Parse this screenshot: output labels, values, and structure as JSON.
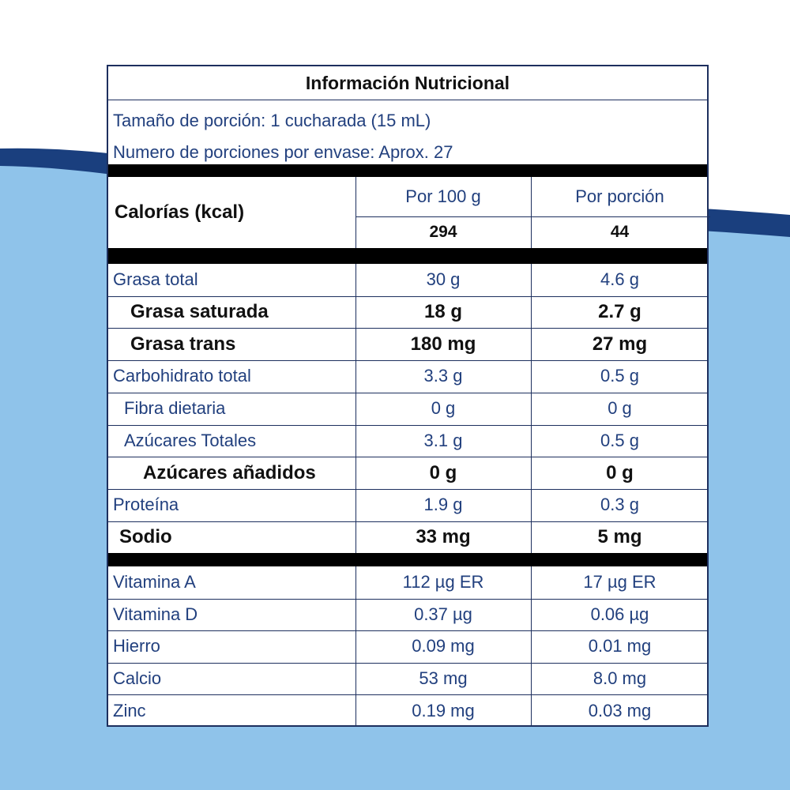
{
  "title": "Información Nutricional",
  "serving": {
    "size": "Tamaño de porción: 1 cucharada (15 mL)",
    "count": "Numero de porciones por envase: Aprox. 27"
  },
  "calories": {
    "label": "Calorías (kcal)",
    "columns": [
      "Por 100 g",
      "Por porción"
    ],
    "values": [
      "294",
      "44"
    ]
  },
  "nutrients": [
    [
      "Grasa total",
      "30 g",
      "4.6 g"
    ],
    [
      "Grasa saturada",
      "18 g",
      "2.7 g"
    ],
    [
      "Grasa trans",
      "180 mg",
      "27 mg"
    ],
    [
      "Carbohidrato total",
      "3.3 g",
      "0.5 g"
    ],
    [
      "Fibra dietaria",
      "0 g",
      "0 g"
    ],
    [
      "Azúcares Totales",
      "3.1 g",
      "0.5 g"
    ],
    [
      "Azúcares añadidos",
      "0 g",
      "0 g"
    ],
    [
      "Proteína",
      "1.9 g",
      "0.3 g"
    ],
    [
      "Sodio",
      "33 mg",
      "5 mg"
    ]
  ],
  "vitamins": [
    [
      "Vitamina A",
      "112 µg ER",
      "17 µg ER"
    ],
    [
      "Vitamina D",
      "0.37 µg",
      "0.06 µg"
    ],
    [
      "Hierro",
      "0.09 mg",
      "0.01 mg"
    ],
    [
      "Calcio",
      "53 mg",
      "8.0 mg"
    ],
    [
      "Zinc",
      "0.19 mg",
      "0.03 mg"
    ]
  ]
}
